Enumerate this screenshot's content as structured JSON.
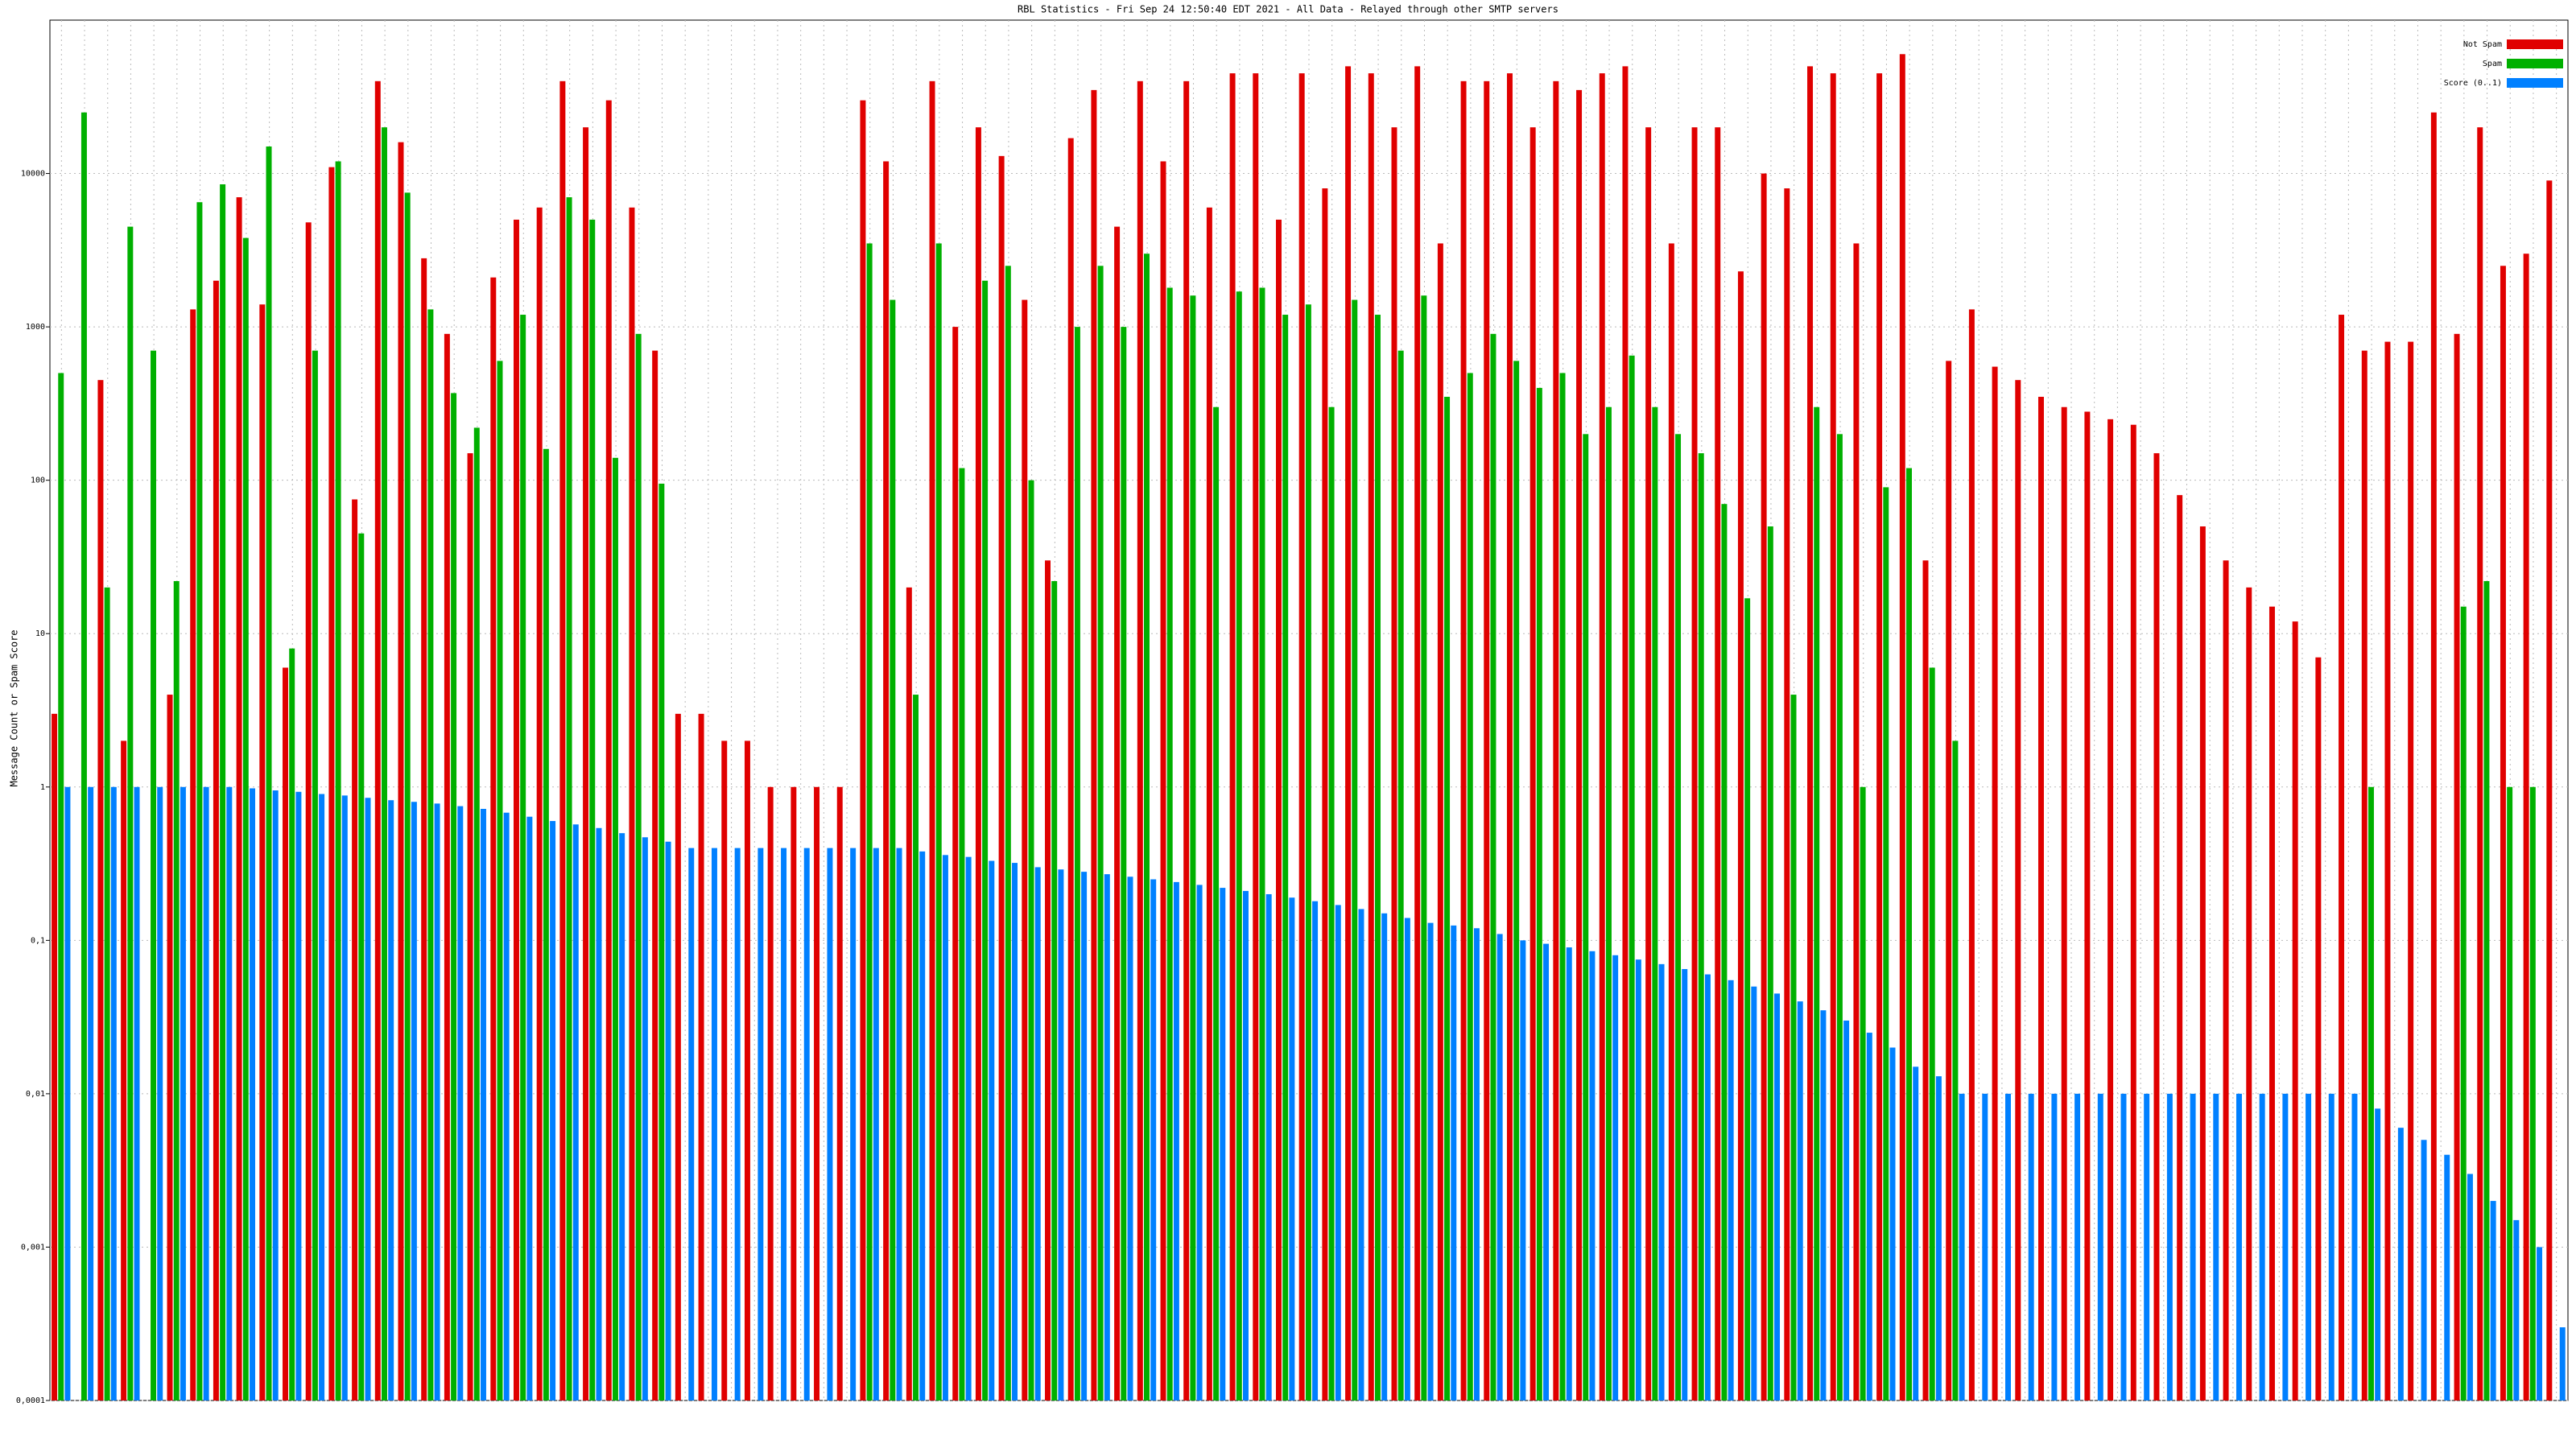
{
  "chart_data": {
    "type": "bar",
    "title": "RBL Statistics - Fri Sep 24 12:50:40 EDT 2021 - All Data - Relayed through other SMTP servers",
    "y_label": "Message Count or Spam Score",
    "log_scale": true,
    "grid": true,
    "legend_position": "top-right",
    "ylim": [
      0.0001,
      100000
    ],
    "yticks": [
      {
        "value": 0.0001,
        "label": "0,0001"
      },
      {
        "value": 0.001,
        "label": "0,001"
      },
      {
        "value": 0.01,
        "label": "0,01"
      },
      {
        "value": 0.1,
        "label": "0,1"
      },
      1,
      10,
      100,
      1000,
      10000
    ],
    "categories": [
      null,
      null,
      null,
      null,
      null,
      null,
      null,
      null,
      null,
      null,
      null,
      null,
      null,
      null,
      null,
      null,
      null,
      null,
      null,
      null,
      null,
      null,
      null,
      null,
      null,
      null,
      null,
      null,
      null,
      null,
      null,
      null,
      null,
      null,
      null,
      null,
      null,
      null,
      null,
      null,
      null,
      null,
      null,
      null,
      null,
      null,
      null,
      null,
      null,
      null,
      null,
      null,
      null,
      null,
      null,
      null,
      null,
      null,
      null,
      null,
      null,
      null,
      null,
      null,
      null,
      null,
      null,
      null,
      null,
      null,
      null,
      null,
      null,
      null,
      null,
      null,
      null,
      null,
      null,
      null,
      null,
      null,
      null,
      null,
      null,
      null,
      null,
      null,
      null,
      null,
      null,
      null,
      null,
      null,
      null,
      null,
      null,
      null,
      null,
      null,
      null,
      null,
      null,
      null,
      null,
      null,
      null,
      null,
      null
    ],
    "series": [
      {
        "name": "Not Spam",
        "color": "#e00000",
        "values": [
          3,
          null,
          450,
          2,
          null,
          4,
          1300,
          2000,
          7000,
          1400,
          6,
          4800,
          11000,
          75,
          40000,
          16000,
          2800,
          900,
          150,
          2100,
          5000,
          6000,
          40000,
          20000,
          30000,
          6000,
          700,
          3,
          3,
          2,
          2,
          1,
          1,
          1,
          1,
          30000,
          12000,
          20,
          40000,
          1000,
          20000,
          13000,
          1500,
          30,
          17000,
          35000,
          4500,
          40000,
          12000,
          40000,
          6000,
          45000,
          45000,
          5000,
          45000,
          8000,
          50000,
          45000,
          20000,
          50000,
          3500,
          40000,
          40000,
          45000,
          20000,
          40000,
          35000,
          45000,
          50000,
          20000,
          3500,
          20000,
          20000,
          2300,
          10000,
          8000,
          50000,
          45000,
          3500,
          45000,
          60000,
          30,
          600,
          1300,
          550,
          450,
          350,
          300,
          280,
          250,
          230,
          150,
          80,
          50,
          30,
          20,
          15,
          12,
          7,
          1200,
          700,
          800,
          800,
          25000,
          900,
          20000,
          2500,
          3000,
          9000
        ]
      },
      {
        "name": "Spam",
        "color": "#00b000",
        "values": [
          500,
          25000,
          20,
          4500,
          700,
          22,
          6500,
          8500,
          3800,
          15000,
          8,
          700,
          12000,
          45,
          20000,
          7500,
          1300,
          370,
          220,
          600,
          1200,
          160,
          7000,
          5000,
          140,
          900,
          95,
          null,
          null,
          null,
          null,
          null,
          null,
          null,
          null,
          3500,
          1500,
          4,
          3500,
          120,
          2000,
          2500,
          100,
          22,
          1000,
          2500,
          1000,
          3000,
          1800,
          1600,
          300,
          1700,
          1800,
          1200,
          1400,
          300,
          1500,
          1200,
          700,
          1600,
          350,
          500,
          900,
          600,
          400,
          500,
          200,
          300,
          650,
          300,
          200,
          150,
          70,
          17,
          50,
          4,
          300,
          200,
          1,
          90,
          120,
          6,
          2,
          null,
          null,
          null,
          null,
          null,
          null,
          null,
          null,
          null,
          null,
          null,
          null,
          null,
          null,
          null,
          null,
          null,
          1,
          null,
          null,
          null,
          15,
          22,
          1,
          1,
          null
        ]
      },
      {
        "name": "Score (0..1)",
        "color": "#0080ff",
        "values": [
          1,
          1,
          1,
          1,
          1,
          1,
          1,
          1,
          0.98,
          0.95,
          0.93,
          0.9,
          0.88,
          0.85,
          0.82,
          0.8,
          0.78,
          0.75,
          0.72,
          0.68,
          0.64,
          0.6,
          0.57,
          0.54,
          0.5,
          0.47,
          0.44,
          0.4,
          0.4,
          0.4,
          0.4,
          0.4,
          0.4,
          0.4,
          0.4,
          0.4,
          0.4,
          0.38,
          0.36,
          0.35,
          0.33,
          0.32,
          0.3,
          0.29,
          0.28,
          0.27,
          0.26,
          0.25,
          0.24,
          0.23,
          0.22,
          0.21,
          0.2,
          0.19,
          0.18,
          0.17,
          0.16,
          0.15,
          0.14,
          0.13,
          0.125,
          0.12,
          0.11,
          0.1,
          0.095,
          0.09,
          0.085,
          0.08,
          0.075,
          0.07,
          0.065,
          0.06,
          0.055,
          0.05,
          0.045,
          0.04,
          0.035,
          0.03,
          0.025,
          0.02,
          0.015,
          0.013,
          0.01,
          0.01,
          0.01,
          0.01,
          0.01,
          0.01,
          0.01,
          0.01,
          0.01,
          0.01,
          0.01,
          0.01,
          0.01,
          0.01,
          0.01,
          0.01,
          0.01,
          0.01,
          0.008,
          0.006,
          0.005,
          0.004,
          0.003,
          0.002,
          0.0015,
          0.001,
          0.0003
        ]
      }
    ]
  }
}
